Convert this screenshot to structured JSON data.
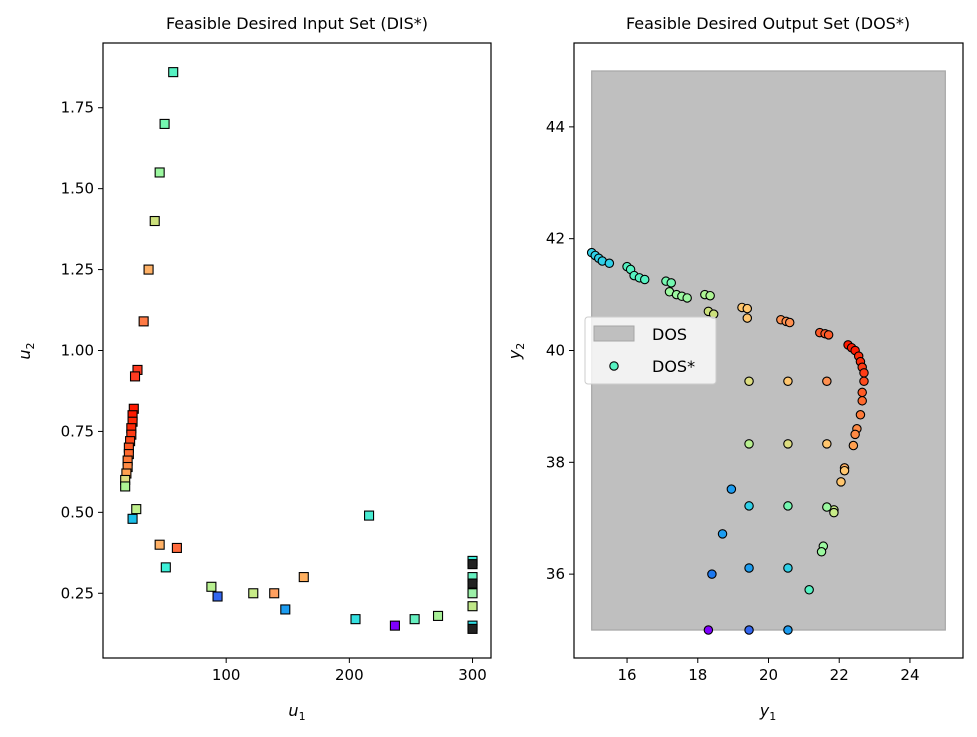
{
  "chart_data": [
    {
      "type": "scatter",
      "title": "Feasible Desired Input Set (DIS*)",
      "xlabel": "u",
      "xlabel_sub": "1",
      "ylabel": "u",
      "ylabel_sub": "2",
      "xlim": [
        0,
        315
      ],
      "ylim": [
        0.05,
        1.95
      ],
      "xticks": [
        100,
        200,
        300
      ],
      "yticks": [
        0.25,
        0.5,
        0.75,
        1.0,
        1.25,
        1.5,
        1.75
      ],
      "marker": "square",
      "points": [
        {
          "x": 57,
          "y": 1.86,
          "c": "#56f2c2"
        },
        {
          "x": 50,
          "y": 1.7,
          "c": "#74f7b0"
        },
        {
          "x": 46,
          "y": 1.55,
          "c": "#9cf8a0"
        },
        {
          "x": 42,
          "y": 1.4,
          "c": "#cce07c"
        },
        {
          "x": 37,
          "y": 1.25,
          "c": "#ffb166"
        },
        {
          "x": 33,
          "y": 1.09,
          "c": "#ff7a45"
        },
        {
          "x": 28,
          "y": 0.94,
          "c": "#ff3b20"
        },
        {
          "x": 26,
          "y": 0.92,
          "c": "#ff3b20"
        },
        {
          "x": 25,
          "y": 0.82,
          "c": "#ff1a00"
        },
        {
          "x": 24,
          "y": 0.8,
          "c": "#ff1a00"
        },
        {
          "x": 24,
          "y": 0.78,
          "c": "#ff2a08"
        },
        {
          "x": 23,
          "y": 0.76,
          "c": "#ff2a08"
        },
        {
          "x": 23,
          "y": 0.74,
          "c": "#ff3b14"
        },
        {
          "x": 22,
          "y": 0.72,
          "c": "#ff4a1c"
        },
        {
          "x": 21,
          "y": 0.7,
          "c": "#ff5a24"
        },
        {
          "x": 21,
          "y": 0.68,
          "c": "#ff6a2e"
        },
        {
          "x": 20,
          "y": 0.66,
          "c": "#ff7a38"
        },
        {
          "x": 20,
          "y": 0.64,
          "c": "#ff8a44"
        },
        {
          "x": 19,
          "y": 0.62,
          "c": "#ffa050"
        },
        {
          "x": 18,
          "y": 0.6,
          "c": "#dddd80"
        },
        {
          "x": 18,
          "y": 0.58,
          "c": "#aef594"
        },
        {
          "x": 24,
          "y": 0.48,
          "c": "#1bbfe8"
        },
        {
          "x": 27,
          "y": 0.51,
          "c": "#bff08c"
        },
        {
          "x": 46,
          "y": 0.4,
          "c": "#ffb166"
        },
        {
          "x": 60,
          "y": 0.39,
          "c": "#ff6a3c"
        },
        {
          "x": 51,
          "y": 0.33,
          "c": "#3cf0d8"
        },
        {
          "x": 88,
          "y": 0.27,
          "c": "#b8f090"
        },
        {
          "x": 93,
          "y": 0.24,
          "c": "#3366f0"
        },
        {
          "x": 122,
          "y": 0.25,
          "c": "#c8ec88"
        },
        {
          "x": 139,
          "y": 0.25,
          "c": "#ffa060"
        },
        {
          "x": 148,
          "y": 0.2,
          "c": "#1c9cf0"
        },
        {
          "x": 163,
          "y": 0.3,
          "c": "#ffb060"
        },
        {
          "x": 205,
          "y": 0.17,
          "c": "#34e0e0"
        },
        {
          "x": 216,
          "y": 0.49,
          "c": "#48ecd2"
        },
        {
          "x": 237,
          "y": 0.15,
          "c": "#8000ff"
        },
        {
          "x": 253,
          "y": 0.17,
          "c": "#66f0c0"
        },
        {
          "x": 272,
          "y": 0.18,
          "c": "#a8f098"
        },
        {
          "x": 300,
          "y": 0.35,
          "c": "#3cecd8"
        },
        {
          "x": 300,
          "y": 0.34,
          "c": "#222222"
        },
        {
          "x": 300,
          "y": 0.3,
          "c": "#66f0c0"
        },
        {
          "x": 300,
          "y": 0.28,
          "c": "#222222"
        },
        {
          "x": 300,
          "y": 0.25,
          "c": "#9cf0a8"
        },
        {
          "x": 300,
          "y": 0.21,
          "c": "#c0e888"
        },
        {
          "x": 300,
          "y": 0.15,
          "c": "#30e0e8"
        },
        {
          "x": 300,
          "y": 0.14,
          "c": "#222222"
        }
      ]
    },
    {
      "type": "scatter",
      "title": "Feasible Desired Output Set (DOS*)",
      "xlabel": "y",
      "xlabel_sub": "1",
      "ylabel": "y",
      "ylabel_sub": "2",
      "xlim": [
        14.5,
        25.5
      ],
      "ylim": [
        34.5,
        45.5
      ],
      "xticks": [
        16,
        18,
        20,
        22,
        24
      ],
      "yticks": [
        36,
        38,
        40,
        42,
        44
      ],
      "marker": "circle",
      "region": {
        "x": [
          15,
          25
        ],
        "y": [
          35,
          45
        ],
        "color": "#bfbfbf",
        "edge": "#a6a6a6"
      },
      "legend": {
        "placement": "center-left",
        "entries": [
          "DOS",
          "DOS*"
        ]
      },
      "points": [
        {
          "x": 15.0,
          "y": 41.75,
          "c": "#30d0e8"
        },
        {
          "x": 15.1,
          "y": 41.7,
          "c": "#30d0e8"
        },
        {
          "x": 15.2,
          "y": 41.65,
          "c": "#30d0e8"
        },
        {
          "x": 15.3,
          "y": 41.6,
          "c": "#30d0e8"
        },
        {
          "x": 15.5,
          "y": 41.56,
          "c": "#30d0e8"
        },
        {
          "x": 16.0,
          "y": 41.5,
          "c": "#56f2c2"
        },
        {
          "x": 16.1,
          "y": 41.45,
          "c": "#56f2c2"
        },
        {
          "x": 16.2,
          "y": 41.34,
          "c": "#56f2c2"
        },
        {
          "x": 16.35,
          "y": 41.3,
          "c": "#56f2c2"
        },
        {
          "x": 16.5,
          "y": 41.27,
          "c": "#56f2c2"
        },
        {
          "x": 17.1,
          "y": 41.24,
          "c": "#74f7b0"
        },
        {
          "x": 17.25,
          "y": 41.21,
          "c": "#74f7b0"
        },
        {
          "x": 17.2,
          "y": 41.05,
          "c": "#9cf8a0"
        },
        {
          "x": 17.4,
          "y": 41.0,
          "c": "#9cf8a0"
        },
        {
          "x": 17.55,
          "y": 40.97,
          "c": "#9cf8a0"
        },
        {
          "x": 17.7,
          "y": 40.94,
          "c": "#9cf8a0"
        },
        {
          "x": 18.2,
          "y": 41.0,
          "c": "#aef594"
        },
        {
          "x": 18.35,
          "y": 40.98,
          "c": "#aef594"
        },
        {
          "x": 18.3,
          "y": 40.7,
          "c": "#cce07c"
        },
        {
          "x": 18.45,
          "y": 40.65,
          "c": "#cce07c"
        },
        {
          "x": 19.25,
          "y": 40.77,
          "c": "#ffc66e"
        },
        {
          "x": 19.4,
          "y": 40.75,
          "c": "#ffc66e"
        },
        {
          "x": 19.4,
          "y": 40.58,
          "c": "#ffc66e"
        },
        {
          "x": 20.35,
          "y": 40.55,
          "c": "#ff9050"
        },
        {
          "x": 20.5,
          "y": 40.52,
          "c": "#ff9050"
        },
        {
          "x": 20.6,
          "y": 40.5,
          "c": "#ff9050"
        },
        {
          "x": 21.45,
          "y": 40.32,
          "c": "#ff5a28"
        },
        {
          "x": 21.6,
          "y": 40.3,
          "c": "#ff5a28"
        },
        {
          "x": 21.7,
          "y": 40.28,
          "c": "#ff5a28"
        },
        {
          "x": 22.25,
          "y": 40.1,
          "c": "#ff1a00"
        },
        {
          "x": 22.35,
          "y": 40.05,
          "c": "#ff1a00"
        },
        {
          "x": 22.45,
          "y": 40.0,
          "c": "#ff1a00"
        },
        {
          "x": 22.55,
          "y": 39.9,
          "c": "#ff2a08"
        },
        {
          "x": 22.6,
          "y": 39.8,
          "c": "#ff2a08"
        },
        {
          "x": 22.65,
          "y": 39.7,
          "c": "#ff3b14"
        },
        {
          "x": 22.7,
          "y": 39.6,
          "c": "#ff3b14"
        },
        {
          "x": 22.7,
          "y": 39.45,
          "c": "#ff4a1c"
        },
        {
          "x": 22.65,
          "y": 39.25,
          "c": "#ff5a24"
        },
        {
          "x": 22.65,
          "y": 39.1,
          "c": "#ff6a2e"
        },
        {
          "x": 22.6,
          "y": 38.85,
          "c": "#ff7a38"
        },
        {
          "x": 22.5,
          "y": 38.6,
          "c": "#ff8a44"
        },
        {
          "x": 22.45,
          "y": 38.5,
          "c": "#ff8a44"
        },
        {
          "x": 22.4,
          "y": 38.3,
          "c": "#ffa050"
        },
        {
          "x": 22.15,
          "y": 37.9,
          "c": "#ffb060"
        },
        {
          "x": 22.15,
          "y": 37.85,
          "c": "#ffc66e"
        },
        {
          "x": 22.05,
          "y": 37.65,
          "c": "#ffc66e"
        },
        {
          "x": 21.85,
          "y": 37.15,
          "c": "#c8ec88"
        },
        {
          "x": 21.85,
          "y": 37.1,
          "c": "#c8ec88"
        },
        {
          "x": 21.65,
          "y": 37.2,
          "c": "#9cf8a0"
        },
        {
          "x": 21.55,
          "y": 36.5,
          "c": "#9cf8a0"
        },
        {
          "x": 21.5,
          "y": 36.4,
          "c": "#9cf8a0"
        },
        {
          "x": 21.15,
          "y": 35.72,
          "c": "#56f2c2"
        },
        {
          "x": 19.45,
          "y": 39.45,
          "c": "#dddd80"
        },
        {
          "x": 20.55,
          "y": 39.45,
          "c": "#ffc66e"
        },
        {
          "x": 21.65,
          "y": 39.45,
          "c": "#ff9050"
        },
        {
          "x": 19.45,
          "y": 38.33,
          "c": "#b8f090"
        },
        {
          "x": 20.55,
          "y": 38.33,
          "c": "#dddd80"
        },
        {
          "x": 21.65,
          "y": 38.33,
          "c": "#ffc66e"
        },
        {
          "x": 18.95,
          "y": 37.52,
          "c": "#1c9cf0"
        },
        {
          "x": 19.45,
          "y": 37.22,
          "c": "#30d0e8"
        },
        {
          "x": 20.55,
          "y": 37.22,
          "c": "#74f7b0"
        },
        {
          "x": 18.7,
          "y": 36.72,
          "c": "#1c9cf0"
        },
        {
          "x": 18.4,
          "y": 36.0,
          "c": "#1c78f0"
        },
        {
          "x": 19.45,
          "y": 36.11,
          "c": "#1c9cf0"
        },
        {
          "x": 20.55,
          "y": 36.11,
          "c": "#30d0e8"
        },
        {
          "x": 18.3,
          "y": 35.0,
          "c": "#8000ff"
        },
        {
          "x": 19.45,
          "y": 35.0,
          "c": "#3366f0"
        },
        {
          "x": 20.55,
          "y": 35.0,
          "c": "#1c9cf0"
        }
      ]
    }
  ]
}
